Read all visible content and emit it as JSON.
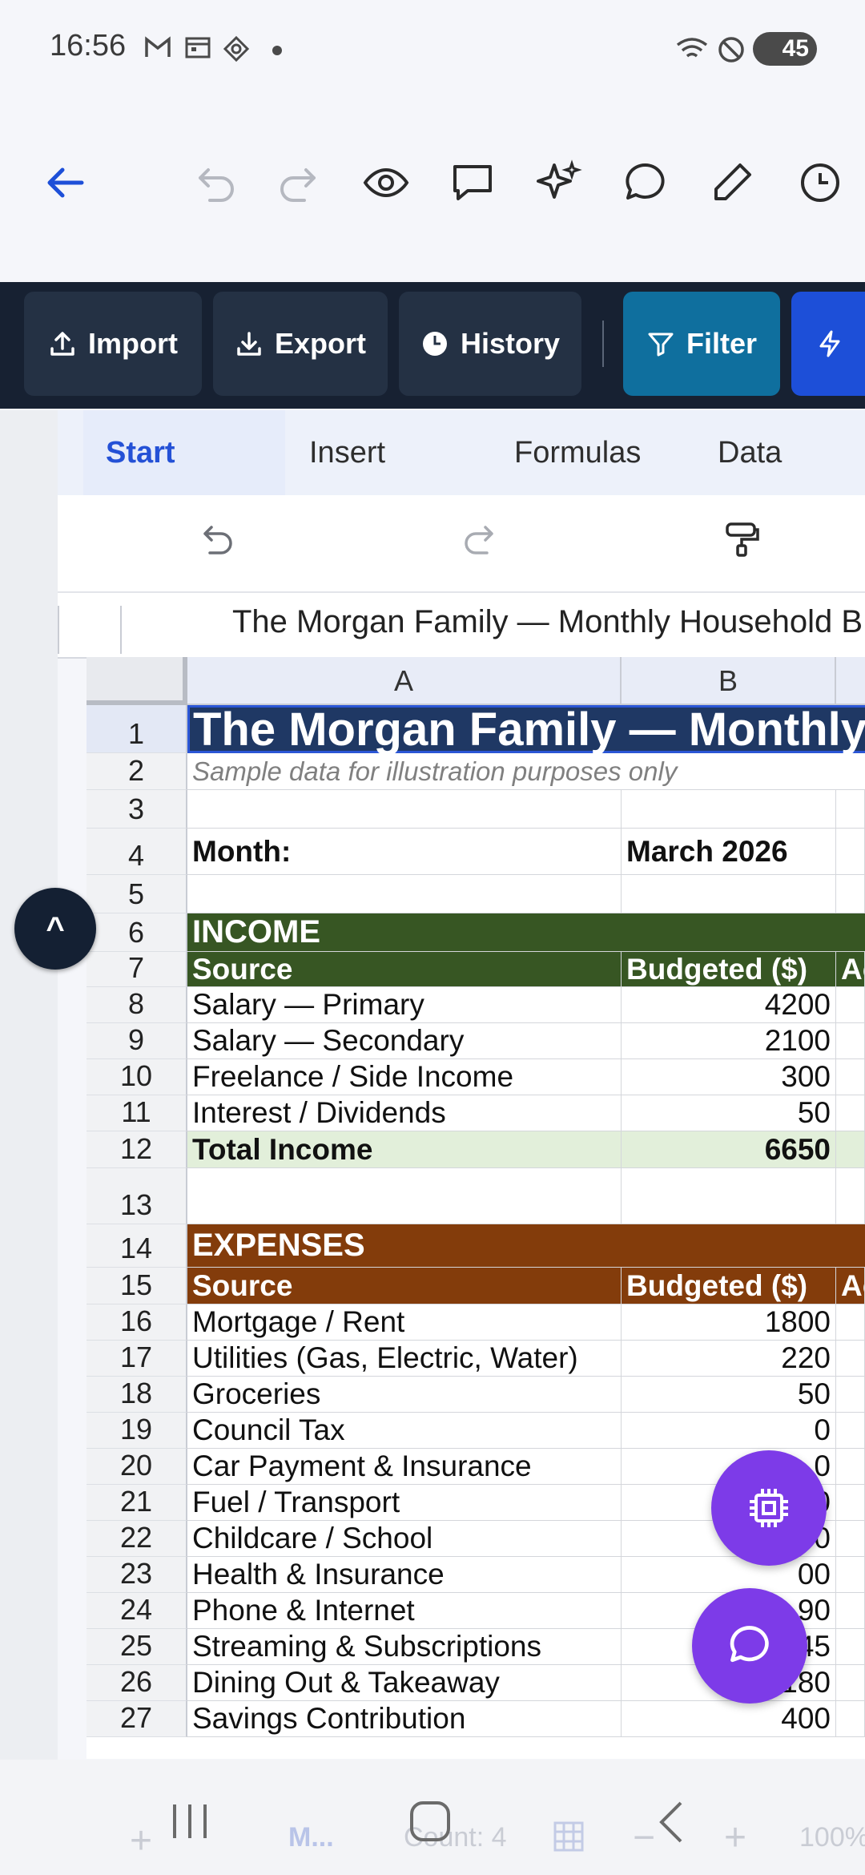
{
  "status_bar": {
    "time": "16:56",
    "battery": "45",
    "icons": [
      "gmail-icon",
      "calendar-icon",
      "app-icon",
      "dot-icon",
      "wifi-icon",
      "dnd-icon"
    ]
  },
  "command_bar": {
    "import": "Import",
    "export": "Export",
    "history": "History",
    "filter": "Filter"
  },
  "ribbon": {
    "tabs": [
      "Start",
      "Insert",
      "Formulas",
      "Data"
    ],
    "active": "Start"
  },
  "formula_bar": {
    "value": "The Morgan Family — Monthly Household B"
  },
  "columns": [
    "A",
    "B"
  ],
  "rows": [
    {
      "n": "1",
      "a": "The Morgan Family — Monthly I",
      "b": ""
    },
    {
      "n": "2",
      "a": "Sample data for illustration purposes only",
      "b": ""
    },
    {
      "n": "3",
      "a": "",
      "b": ""
    },
    {
      "n": "4",
      "a": "Month:",
      "b": "March 2026"
    },
    {
      "n": "5",
      "a": "",
      "b": ""
    },
    {
      "n": "6",
      "a": "INCOME",
      "b": ""
    },
    {
      "n": "7",
      "a": "Source",
      "b": "Budgeted ($)",
      "c": "Ac"
    },
    {
      "n": "8",
      "a": "Salary — Primary",
      "b": "4200"
    },
    {
      "n": "9",
      "a": "Salary — Secondary",
      "b": "2100"
    },
    {
      "n": "10",
      "a": "Freelance / Side Income",
      "b": "300"
    },
    {
      "n": "11",
      "a": "Interest / Dividends",
      "b": "50"
    },
    {
      "n": "12",
      "a": "Total Income",
      "b": "6650"
    },
    {
      "n": "13",
      "a": "",
      "b": ""
    },
    {
      "n": "14",
      "a": "EXPENSES",
      "b": ""
    },
    {
      "n": "15",
      "a": "Source",
      "b": "Budgeted ($)",
      "c": "Ac"
    },
    {
      "n": "16",
      "a": "Mortgage / Rent",
      "b": "1800"
    },
    {
      "n": "17",
      "a": "Utilities (Gas, Electric, Water)",
      "b": "220"
    },
    {
      "n": "18",
      "a": "Groceries",
      "b": "50"
    },
    {
      "n": "19",
      "a": "Council Tax",
      "b": "0"
    },
    {
      "n": "20",
      "a": "Car Payment & Insurance",
      "b": "0"
    },
    {
      "n": "21",
      "a": "Fuel / Transport",
      "b": "150"
    },
    {
      "n": "22",
      "a": "Childcare / School",
      "b": "500"
    },
    {
      "n": "23",
      "a": "Health & Insurance",
      "b": "00"
    },
    {
      "n": "24",
      "a": "Phone & Internet",
      "b": "90"
    },
    {
      "n": "25",
      "a": "Streaming & Subscriptions",
      "b": "45"
    },
    {
      "n": "26",
      "a": "Dining Out & Takeaway",
      "b": "180"
    },
    {
      "n": "27",
      "a": "Savings Contribution",
      "b": "400"
    }
  ],
  "footer": {
    "sheet_tab": "M...",
    "count": "Count: 4",
    "zoom": "100%"
  },
  "colors": {
    "title_bg": "#1f3864",
    "income_bg": "#375623",
    "expenses_bg": "#833c0b",
    "total_bg": "#e2efda",
    "fab": "#7d3be8",
    "filter": "#0f6f9e",
    "accent_blue": "#1d4fd8"
  }
}
